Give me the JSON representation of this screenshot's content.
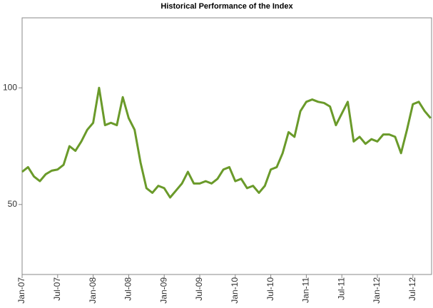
{
  "chart_data": {
    "type": "line",
    "title": "Historical Performance of the Index",
    "categories": [
      "Jan-07",
      null,
      null,
      null,
      null,
      null,
      "Jul-07",
      null,
      null,
      null,
      null,
      null,
      "Jan-08",
      null,
      null,
      null,
      null,
      null,
      "Jul-08",
      null,
      null,
      null,
      null,
      null,
      "Jan-09",
      null,
      null,
      null,
      null,
      null,
      "Jul-09",
      null,
      null,
      null,
      null,
      null,
      "Jan-10",
      null,
      null,
      null,
      null,
      null,
      "Jul-10",
      null,
      null,
      null,
      null,
      null,
      "Jan-11",
      null,
      null,
      null,
      null,
      null,
      "Jul-11",
      null,
      null,
      null,
      null,
      null,
      "Jan-12",
      null,
      null,
      null,
      null,
      null,
      "Jul-12",
      null,
      null,
      null
    ],
    "values": [
      64,
      66,
      62,
      60,
      63,
      64.5,
      65,
      67,
      75,
      73,
      77,
      82,
      85,
      100,
      84,
      85,
      84,
      96,
      87,
      82,
      68,
      57,
      55,
      58,
      57,
      53,
      56,
      59,
      64,
      59,
      59,
      60,
      59,
      61,
      65,
      66,
      60,
      61,
      57,
      58,
      55,
      58,
      65,
      66,
      72,
      81,
      79,
      90,
      94,
      95,
      94,
      93.5,
      92,
      84,
      89,
      94,
      77,
      79,
      76,
      78,
      77,
      80,
      80,
      79,
      72,
      82,
      93,
      94,
      90,
      87
    ],
    "color": "#6a9a2a",
    "ylim": [
      20,
      130
    ],
    "yticks": [
      50,
      100
    ]
  }
}
